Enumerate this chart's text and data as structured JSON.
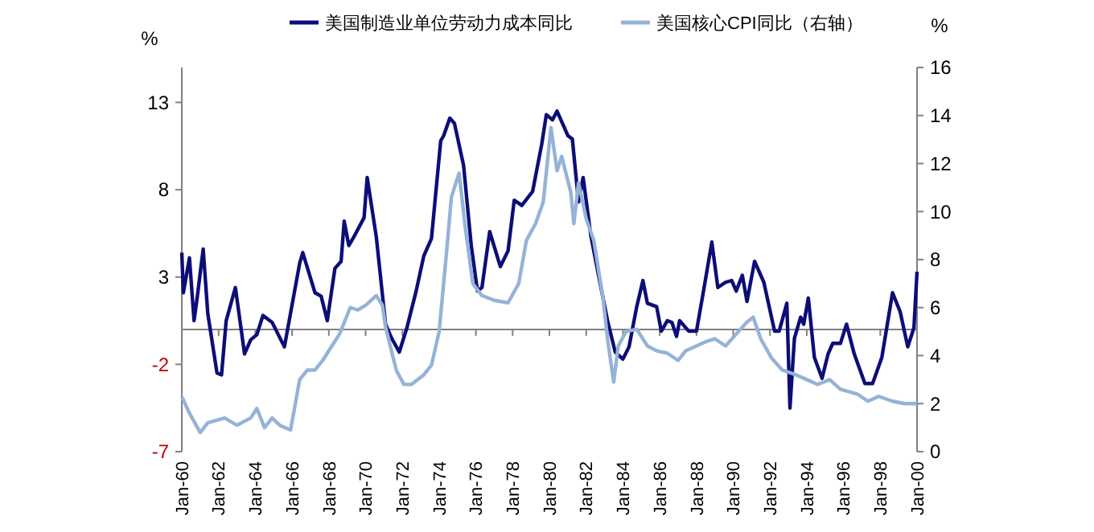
{
  "chart_data": {
    "type": "line",
    "ylabel": "%",
    "y2label": "%",
    "xlim": [
      "1960-01",
      "2000-01"
    ],
    "ylim": [
      -7,
      15
    ],
    "y2lim": [
      0,
      16
    ],
    "yticks": [
      -7,
      -2,
      3,
      8,
      13
    ],
    "y2ticks": [
      0,
      2,
      4,
      6,
      8,
      10,
      12,
      14,
      16
    ],
    "xticks": [
      {
        "value": "1960-01",
        "label": "Jan-60"
      },
      {
        "value": "1962-01",
        "label": "Jan-62"
      },
      {
        "value": "1964-01",
        "label": "Jan-64"
      },
      {
        "value": "1966-01",
        "label": "Jan-66"
      },
      {
        "value": "1968-01",
        "label": "Jan-68"
      },
      {
        "value": "1970-01",
        "label": "Jan-70"
      },
      {
        "value": "1972-01",
        "label": "Jan-72"
      },
      {
        "value": "1974-01",
        "label": "Jan-74"
      },
      {
        "value": "1976-01",
        "label": "Jan-76"
      },
      {
        "value": "1978-01",
        "label": "Jan-78"
      },
      {
        "value": "1980-01",
        "label": "Jan-80"
      },
      {
        "value": "1982-01",
        "label": "Jan-82"
      },
      {
        "value": "1984-01",
        "label": "Jan-84"
      },
      {
        "value": "1986-01",
        "label": "Jan-86"
      },
      {
        "value": "1988-01",
        "label": "Jan-88"
      },
      {
        "value": "1990-01",
        "label": "Jan-90"
      },
      {
        "value": "1992-01",
        "label": "Jan-92"
      },
      {
        "value": "1994-01",
        "label": "Jan-94"
      },
      {
        "value": "1996-01",
        "label": "Jan-96"
      },
      {
        "value": "1998-01",
        "label": "Jan-98"
      },
      {
        "value": "2000-01",
        "label": "Jan-00"
      }
    ],
    "grid": false,
    "legend": "top",
    "marker": "none",
    "line_style": "solid",
    "ref_lines": [
      {
        "axis": "y",
        "value": 0,
        "color": "#808080"
      }
    ],
    "series": [
      {
        "name": "美国制造业单位劳动力成本同比",
        "color": "#0d0d78",
        "x": [
          "1960-01",
          "1960-02",
          "1960-06",
          "1960-09",
          "1960-11",
          "1961-03",
          "1961-06",
          "1961-12",
          "1962-03",
          "1962-06",
          "1962-12",
          "1963-06",
          "1963-10",
          "1964-02",
          "1964-06",
          "1964-12",
          "1965-08",
          "1966-06",
          "1966-08",
          "1967-04",
          "1967-08",
          "1967-12",
          "1968-05",
          "1968-09",
          "1968-11",
          "1969-02",
          "1969-06",
          "1969-12",
          "1970-02",
          "1970-08",
          "1971-02",
          "1971-06",
          "1971-11",
          "1972-04",
          "1972-10",
          "1973-03",
          "1973-08",
          "1974-02",
          "1974-04",
          "1974-08",
          "1974-11",
          "1975-05",
          "1975-10",
          "1976-02",
          "1976-05",
          "1976-10",
          "1977-05",
          "1977-10",
          "1978-02",
          "1978-07",
          "1979-02",
          "1979-08",
          "1979-11",
          "1980-03",
          "1980-06",
          "1980-09",
          "1981-01",
          "1981-04",
          "1981-08",
          "1981-11",
          "1982-04",
          "1982-10",
          "1983-03",
          "1983-08",
          "1984-01",
          "1984-05",
          "1984-10",
          "1985-02",
          "1985-05",
          "1985-11",
          "1986-02",
          "1986-06",
          "1986-09",
          "1986-12",
          "1987-02",
          "1987-08",
          "1988-01",
          "1988-06",
          "1988-11",
          "1989-03",
          "1989-08",
          "1989-12",
          "1990-03",
          "1990-07",
          "1990-10",
          "1991-03",
          "1991-09",
          "1992-04",
          "1992-07",
          "1992-12",
          "1993-02",
          "1993-05",
          "1993-09",
          "1993-11",
          "1994-02",
          "1994-06",
          "1994-11",
          "1995-03",
          "1995-06",
          "1995-11",
          "1996-03",
          "1996-08",
          "1997-03",
          "1997-08",
          "1998-02",
          "1998-09",
          "1999-02",
          "1999-07",
          "1999-11",
          "2000-01"
        ],
        "values": [
          4.4,
          2.1,
          4.1,
          0.5,
          1.8,
          4.6,
          0.9,
          -2.5,
          -2.6,
          0.5,
          2.4,
          -1.4,
          -0.6,
          -0.3,
          0.8,
          0.4,
          -1.0,
          3.8,
          4.4,
          2.1,
          1.9,
          0.5,
          3.5,
          3.9,
          6.2,
          4.8,
          5.4,
          6.4,
          8.7,
          5.3,
          0.3,
          -0.5,
          -1.3,
          0.1,
          2.2,
          4.2,
          5.2,
          10.8,
          11.1,
          12.1,
          11.8,
          9.4,
          4.8,
          2.2,
          2.4,
          5.6,
          3.6,
          4.5,
          7.4,
          7.1,
          7.9,
          10.6,
          12.3,
          12.0,
          12.5,
          11.9,
          11.1,
          10.9,
          7.3,
          8.7,
          5.4,
          2.7,
          0.5,
          -1.3,
          -1.7,
          -1.0,
          1.3,
          2.8,
          1.5,
          1.3,
          -0.1,
          0.5,
          0.4,
          -0.4,
          0.5,
          -0.1,
          -0.1,
          2.4,
          5.0,
          2.4,
          2.7,
          2.8,
          2.2,
          3.1,
          1.6,
          3.9,
          2.7,
          -0.1,
          -0.1,
          1.5,
          -4.5,
          -0.5,
          0.7,
          0.3,
          1.8,
          -1.6,
          -2.8,
          -1.4,
          -0.8,
          -0.8,
          0.3,
          -1.4,
          -3.1,
          -3.1,
          -1.6,
          2.1,
          1.0,
          -1.0,
          0.1,
          3.3
        ]
      },
      {
        "name": "美国核心CPI同比（右轴）",
        "color": "#95b3d7",
        "axis": "y2",
        "x": [
          "1960-01",
          "1960-06",
          "1961-01",
          "1961-06",
          "1962-05",
          "1963-01",
          "1963-10",
          "1964-02",
          "1964-07",
          "1964-12",
          "1965-05",
          "1965-12",
          "1966-06",
          "1966-11",
          "1967-04",
          "1967-09",
          "1968-03",
          "1968-08",
          "1969-03",
          "1969-08",
          "1970-01",
          "1970-08",
          "1970-12",
          "1971-02",
          "1971-09",
          "1972-02",
          "1972-07",
          "1973-03",
          "1973-08",
          "1974-01",
          "1974-06",
          "1974-09",
          "1975-02",
          "1975-06",
          "1975-11",
          "1976-05",
          "1977-01",
          "1977-10",
          "1978-05",
          "1978-10",
          "1979-04",
          "1979-09",
          "1980-02",
          "1980-06",
          "1980-09",
          "1981-03",
          "1981-05",
          "1981-08",
          "1982-01",
          "1982-06",
          "1982-12",
          "1983-03",
          "1983-07",
          "1983-10",
          "1984-03",
          "1984-10",
          "1985-05",
          "1985-11",
          "1986-06",
          "1987-01",
          "1987-06",
          "1988-01",
          "1988-08",
          "1989-01",
          "1989-08",
          "1990-03",
          "1990-10",
          "1991-02",
          "1991-07",
          "1992-02",
          "1992-09",
          "1993-06",
          "1994-01",
          "1994-08",
          "1995-04",
          "1995-11",
          "1996-10",
          "1997-05",
          "1997-12",
          "1998-09",
          "1999-05",
          "2000-01"
        ],
        "values": [
          2.3,
          1.6,
          0.8,
          1.2,
          1.4,
          1.1,
          1.4,
          1.8,
          1.0,
          1.4,
          1.1,
          0.9,
          3.0,
          3.4,
          3.4,
          3.8,
          4.4,
          4.9,
          6.0,
          5.9,
          6.1,
          6.5,
          6.1,
          5.2,
          3.4,
          2.8,
          2.8,
          3.2,
          3.6,
          5.0,
          8.4,
          10.6,
          11.6,
          9.4,
          7.0,
          6.5,
          6.3,
          6.2,
          7.0,
          8.8,
          9.5,
          10.4,
          13.5,
          11.7,
          12.3,
          10.8,
          9.5,
          11.2,
          9.7,
          8.8,
          6.4,
          4.7,
          2.9,
          4.4,
          5.0,
          5.1,
          4.4,
          4.2,
          4.1,
          3.8,
          4.2,
          4.4,
          4.6,
          4.7,
          4.4,
          4.9,
          5.4,
          5.6,
          4.7,
          3.9,
          3.4,
          3.2,
          3.0,
          2.8,
          3.0,
          2.6,
          2.4,
          2.1,
          2.3,
          2.1,
          2.0,
          2.0
        ]
      }
    ]
  }
}
